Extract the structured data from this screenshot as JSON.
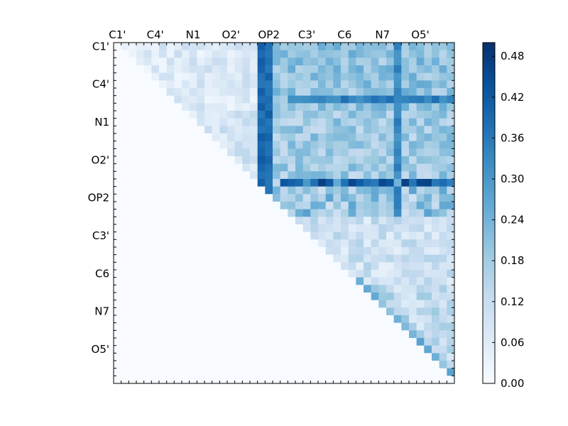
{
  "chart_data": {
    "type": "heatmap",
    "title": "",
    "xlabel": "",
    "ylabel": "",
    "matrix_size": 45,
    "atom_labels": [
      "C1'",
      "C4'",
      "N1",
      "O2'",
      "OP2",
      "C3'",
      "C6",
      "N7",
      "O5'"
    ],
    "x_tick_labels": [
      "C1'",
      "C4'",
      "N1",
      "O2'",
      "OP2",
      "C3'",
      "C6",
      "N7",
      "O5'"
    ],
    "y_tick_labels": [
      "C1'",
      "C4'",
      "N1",
      "O2'",
      "OP2",
      "C3'",
      "C6",
      "N7",
      "O5'"
    ],
    "label_step": 5,
    "colormap": "Blues",
    "color_range": [
      0.0,
      0.5
    ],
    "colorbar_ticks": [
      "0.00",
      "0.06",
      "0.12",
      "0.18",
      "0.24",
      "0.30",
      "0.36",
      "0.42",
      "0.48"
    ],
    "colorbar_tick_values": [
      0.0,
      0.06,
      0.12,
      0.18,
      0.24,
      0.3,
      0.36,
      0.42,
      0.48
    ],
    "lower_triangle_value": 0.0,
    "upper_triangle_note": "values increase toward the OP2 / C6 region; strong bands at row 7 and column 19",
    "strong_row": 7,
    "strong_column": 19,
    "strong_column_2": 37,
    "hot_row": 18,
    "grid": false
  }
}
